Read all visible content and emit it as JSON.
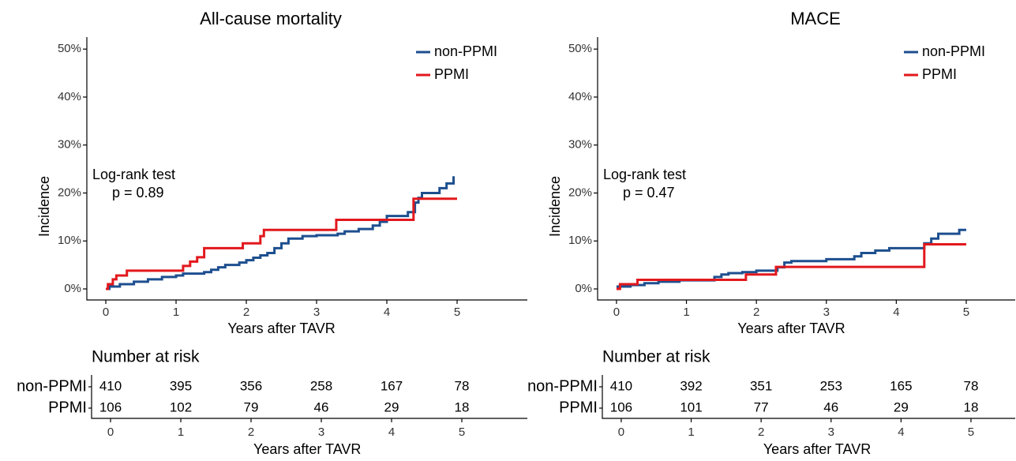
{
  "chart_data": [
    {
      "type": "step",
      "title": "All-cause mortality",
      "xlabel": "Years after TAVR",
      "ylabel": "Incidence",
      "xlim": [
        -0.27,
        6.0
      ],
      "xticks": [
        0,
        1,
        2,
        3,
        4,
        5
      ],
      "ylim": [
        -2.3,
        52.5
      ],
      "yticks": [
        {
          "value": 0,
          "label": "0%"
        },
        {
          "value": 10,
          "label": "10%"
        },
        {
          "value": 20,
          "label": "20%"
        },
        {
          "value": 30,
          "label": "30%"
        },
        {
          "value": 40,
          "label": "40%"
        },
        {
          "value": 50,
          "label": "50%"
        }
      ],
      "legend": "top right",
      "annotations": [
        "Log-rank test",
        "p = 0.89"
      ],
      "series": [
        {
          "name": "non-PPMI",
          "color": "#1d4f8f",
          "x": [
            0,
            0.05,
            0.2,
            0.4,
            0.6,
            0.8,
            1.0,
            1.1,
            1.4,
            1.5,
            1.6,
            1.7,
            1.9,
            2.0,
            2.1,
            2.2,
            2.3,
            2.4,
            2.5,
            2.6,
            2.8,
            3.0,
            3.3,
            3.4,
            3.6,
            3.8,
            3.9,
            4.0,
            4.3,
            4.4,
            4.45,
            4.5,
            4.75,
            4.85,
            4.95
          ],
          "values": [
            0,
            0.5,
            1,
            1.5,
            2,
            2.5,
            2.8,
            3.2,
            3.5,
            4,
            4.5,
            5,
            5.5,
            6,
            6.5,
            7,
            7.5,
            8.5,
            9.5,
            10.5,
            11,
            11.2,
            11.5,
            12,
            12.5,
            13.2,
            14,
            15.2,
            16,
            18,
            19,
            20,
            21,
            22,
            23.5
          ]
        },
        {
          "name": "PPMI",
          "color": "#e2181d",
          "x": [
            0,
            0.03,
            0.1,
            0.15,
            0.3,
            1.1,
            1.2,
            1.3,
            1.4,
            1.95,
            2.2,
            2.25,
            3.28,
            4.38,
            5.0
          ],
          "values": [
            0,
            1,
            2,
            2.8,
            3.8,
            4.8,
            5.7,
            6.6,
            8.5,
            9.5,
            11,
            12.3,
            14.4,
            18.8,
            18.8
          ]
        }
      ],
      "risk_table": {
        "title": "Number at risk",
        "xlabel": "Years after TAVR",
        "xticks": [
          0,
          1,
          2,
          3,
          4,
          5
        ],
        "rows": [
          {
            "name": "non-PPMI",
            "values": [
              410,
              395,
              356,
              258,
              167,
              78
            ]
          },
          {
            "name": "PPMI",
            "values": [
              106,
              102,
              79,
              46,
              29,
              18
            ]
          }
        ]
      }
    },
    {
      "type": "step",
      "title": "MACE",
      "xlabel": "Years after TAVR",
      "ylabel": "Incidence",
      "xlim": [
        -0.27,
        5.7
      ],
      "xticks": [
        0,
        1,
        2,
        3,
        4,
        5
      ],
      "ylim": [
        -2.3,
        52.5
      ],
      "yticks": [
        {
          "value": 0,
          "label": "0%"
        },
        {
          "value": 10,
          "label": "10%"
        },
        {
          "value": 20,
          "label": "20%"
        },
        {
          "value": 30,
          "label": "30%"
        },
        {
          "value": 40,
          "label": "40%"
        },
        {
          "value": 50,
          "label": "50%"
        }
      ],
      "legend": "top right",
      "annotations": [
        "Log-rank test",
        "p = 0.47"
      ],
      "series": [
        {
          "name": "non-PPMI",
          "color": "#1d4f8f",
          "x": [
            0,
            0.2,
            0.4,
            0.6,
            0.9,
            1.4,
            1.5,
            1.6,
            1.8,
            2.0,
            2.3,
            2.4,
            2.5,
            3.0,
            3.4,
            3.5,
            3.7,
            3.9,
            4.4,
            4.5,
            4.6,
            4.9,
            5.0
          ],
          "values": [
            0.5,
            0.8,
            1.2,
            1.5,
            1.8,
            2.5,
            3,
            3.3,
            3.5,
            3.8,
            4.5,
            5.5,
            5.8,
            6.2,
            6.8,
            7.5,
            8,
            8.5,
            9.5,
            10.5,
            11.5,
            12.3,
            12.3
          ]
        },
        {
          "name": "PPMI",
          "color": "#e2181d",
          "x": [
            0,
            0.05,
            0.3,
            1.85,
            2.28,
            4.4,
            5.0
          ],
          "values": [
            0,
            1,
            1.9,
            3,
            4.6,
            9.3,
            9.3
          ]
        }
      ],
      "risk_table": {
        "title": "Number at risk",
        "xlabel": "Years after TAVR",
        "xticks": [
          0,
          1,
          2,
          3,
          4,
          5
        ],
        "rows": [
          {
            "name": "non-PPMI",
            "values": [
              410,
              392,
              351,
              253,
              165,
              78
            ]
          },
          {
            "name": "PPMI",
            "values": [
              106,
              101,
              77,
              46,
              29,
              18
            ]
          }
        ]
      }
    }
  ]
}
